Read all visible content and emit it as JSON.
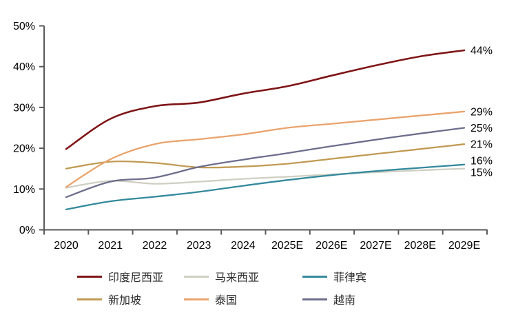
{
  "chart_data": {
    "type": "line",
    "title": "",
    "x_categories": [
      "2020",
      "2021",
      "2022",
      "2023",
      "2024",
      "2025E",
      "2026E",
      "2027E",
      "2028E",
      "2029E"
    ],
    "y_axis": {
      "tick_labels": [
        "0%",
        "10%",
        "20%",
        "30%",
        "40%",
        "50%"
      ],
      "min": 0,
      "max": 50,
      "step": 10,
      "suffix": "%"
    },
    "grid": "off",
    "legend_position": "bottom",
    "axis_color": "#595959",
    "text_color": "#000000",
    "series": [
      {
        "key": "indonesia",
        "name": "印度尼西亚",
        "color": "#7E1416",
        "end_label": "44%",
        "values": [
          19.8,
          27.2,
          30.3,
          31.2,
          33.4,
          35.2,
          37.8,
          40.3,
          42.5,
          44
        ]
      },
      {
        "key": "malaysia",
        "name": "马来西亚",
        "color": "#CFCFC3",
        "end_label": "15%",
        "values": [
          10.3,
          12.0,
          11.3,
          11.8,
          12.5,
          13.0,
          13.6,
          14.1,
          14.6,
          15
        ]
      },
      {
        "key": "philippines",
        "name": "菲律宾",
        "color": "#33899C",
        "end_label": "16%",
        "values": [
          5.0,
          7.0,
          8.1,
          9.3,
          10.8,
          12.2,
          13.4,
          14.4,
          15.2,
          16
        ]
      },
      {
        "key": "singapore",
        "name": "新加坡",
        "color": "#C09A52",
        "end_label": "21%",
        "values": [
          15.0,
          16.7,
          16.4,
          15.3,
          15.5,
          16.2,
          17.4,
          18.6,
          19.8,
          21
        ]
      },
      {
        "key": "thailand",
        "name": "泰国",
        "color": "#E9A36C",
        "end_label": "29%",
        "values": [
          10.5,
          17.3,
          21.0,
          22.2,
          23.4,
          25.0,
          26.0,
          27.0,
          28.0,
          29
        ]
      },
      {
        "key": "vietnam",
        "name": "越南",
        "color": "#6D6D8D",
        "end_label": "25%",
        "values": [
          8.0,
          11.8,
          12.8,
          15.4,
          17.2,
          18.8,
          20.5,
          22.1,
          23.6,
          25
        ]
      }
    ]
  }
}
